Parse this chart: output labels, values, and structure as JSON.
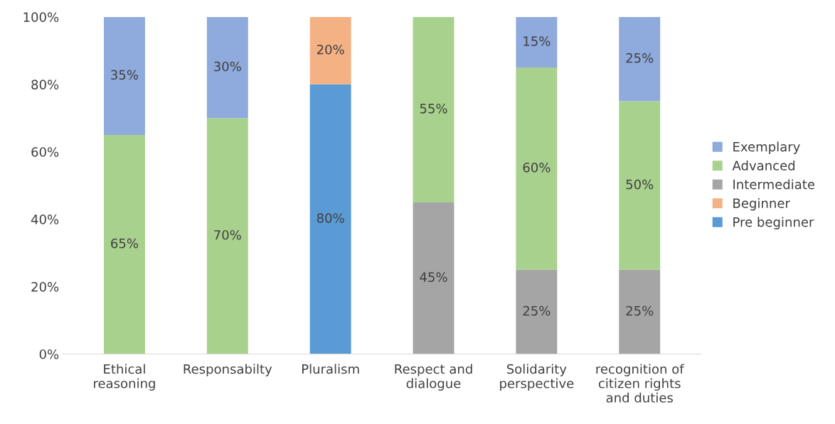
{
  "chart_data": {
    "type": "bar",
    "stacked": true,
    "categories": [
      "Ethical reasoning",
      "Responsabilty",
      "Pluralism",
      "Respect and dialogue",
      "Solidarity perspective",
      "recognition of citizen rights and duties"
    ],
    "series": [
      {
        "name": "Pre beginner",
        "color": "#5b9bd5",
        "values": [
          null,
          null,
          80,
          null,
          null,
          null
        ],
        "value_labels": [
          null,
          null,
          "80%",
          null,
          null,
          null
        ]
      },
      {
        "name": "Beginner",
        "color": "#f4b183",
        "values": [
          null,
          null,
          20,
          null,
          null,
          null
        ],
        "value_labels": [
          null,
          null,
          "20%",
          null,
          null,
          null
        ]
      },
      {
        "name": "Intermediate",
        "color": "#a5a5a5",
        "values": [
          null,
          null,
          null,
          45,
          25,
          25
        ],
        "value_labels": [
          null,
          null,
          null,
          "45%",
          "25%",
          "25%"
        ]
      },
      {
        "name": "Advanced",
        "color": "#a9d18e",
        "values": [
          65,
          70,
          null,
          55,
          60,
          50
        ],
        "value_labels": [
          "65%",
          "70%",
          null,
          "55%",
          "60%",
          "50%"
        ]
      },
      {
        "name": "Exemplary",
        "color": "#8faadc",
        "values": [
          35,
          30,
          null,
          null,
          15,
          25
        ],
        "value_labels": [
          "35%",
          "30%",
          null,
          null,
          "15%",
          "25%"
        ]
      }
    ],
    "ylim": [
      0,
      100
    ],
    "yticks": [
      {
        "value": 0,
        "label": "0%"
      },
      {
        "value": 20,
        "label": "20%"
      },
      {
        "value": 40,
        "label": "40%"
      },
      {
        "value": 60,
        "label": "60%"
      },
      {
        "value": 80,
        "label": "80%"
      },
      {
        "value": 100,
        "label": "100%"
      }
    ],
    "legend": "right"
  }
}
